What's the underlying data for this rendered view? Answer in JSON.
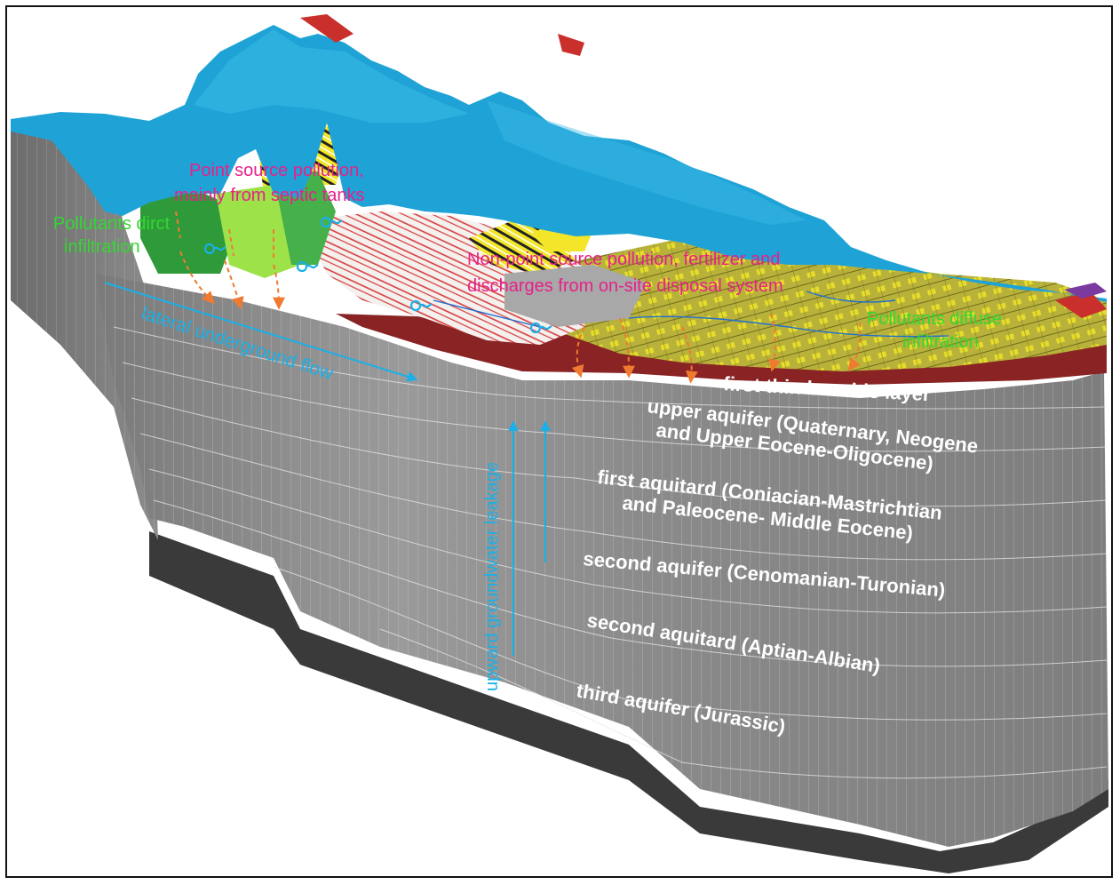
{
  "labels": {
    "point_source": "Point source pollution,",
    "point_source_2": "mainly from septic tanks",
    "direct_infiltration": "Pollutants dirct",
    "direct_infiltration_2": "infiltration",
    "non_point": "Non-point source pollution, fertilizer and",
    "non_point_2": "discharges from on-site disposal system",
    "diffuse": "Pollutants diffuse",
    "diffuse_2": "infiltration",
    "lateral_flow": "lateral underground flow",
    "upward_leakage": "upward groundwater leakage"
  },
  "layers": {
    "basalt": "first thin basaltic layer",
    "upper_aquifer_1": "upper aquifer (Quaternary, Neogene",
    "upper_aquifer_2": "and Upper Eocene-Oligocene)",
    "first_aquitard_1": "first aquitard (Coniacian-Mastrichtian",
    "first_aquitard_2": "and Paleocene- Middle Eocene)",
    "second_aquifer": "second aquifer (Cenomanian-Turonian)",
    "second_aquitard": "second aquitard (Aptian-Albian)",
    "third_aquifer": "third aquifer (Jurassic)"
  },
  "colors": {
    "pink": "#e8208a",
    "green": "#32d832",
    "cyan": "#1ab0e8",
    "orange": "#f07a30",
    "wall": "#8e8e8e",
    "terrain_blue": "#1fa3d6"
  }
}
